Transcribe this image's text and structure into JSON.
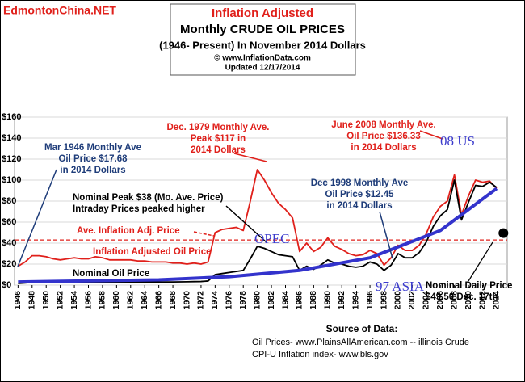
{
  "chart_data": {
    "type": "line",
    "watermark": "EdmontonChina.NET",
    "title": "Inflation Adjusted",
    "subtitle_lines": [
      "Monthly CRUDE OIL PRICES",
      "(1946- Present) In November 2014 Dollars",
      "© www.InflationData.com",
      "Updated 12/17/2014"
    ],
    "x": [
      1946,
      1947,
      1948,
      1949,
      1950,
      1951,
      1952,
      1953,
      1954,
      1955,
      1956,
      1957,
      1958,
      1959,
      1960,
      1961,
      1962,
      1963,
      1964,
      1965,
      1966,
      1967,
      1968,
      1969,
      1970,
      1971,
      1972,
      1973,
      1974,
      1975,
      1976,
      1977,
      1978,
      1979,
      1980,
      1981,
      1982,
      1983,
      1984,
      1985,
      1986,
      1987,
      1988,
      1989,
      1990,
      1991,
      1992,
      1993,
      1994,
      1995,
      1996,
      1997,
      1998,
      1999,
      2000,
      2001,
      2002,
      2003,
      2004,
      2005,
      2006,
      2007,
      2008,
      2009,
      2010,
      2011,
      2012,
      2013,
      2014
    ],
    "series": [
      {
        "name": "Inflation Adjusted Oil Price",
        "color": "#e0201b",
        "values": [
          18,
          22,
          28,
          28,
          27,
          25,
          24,
          25,
          26,
          25,
          25,
          27,
          26,
          24,
          24,
          24,
          24,
          23,
          23,
          22,
          22,
          22,
          21,
          21,
          20,
          21,
          20,
          22,
          50,
          53,
          54,
          55,
          52,
          80,
          110,
          100,
          88,
          78,
          72,
          64,
          32,
          40,
          32,
          36,
          45,
          37,
          34,
          30,
          28,
          29,
          33,
          30,
          19,
          26,
          38,
          33,
          33,
          38,
          49,
          65,
          75,
          80,
          105,
          67,
          85,
          100,
          98,
          99,
          92
        ]
      },
      {
        "name": "Nominal Oil Price",
        "color": "#000000",
        "values": [
          1.6,
          2,
          2.6,
          2.6,
          2.6,
          2.5,
          2.5,
          2.7,
          2.8,
          2.8,
          2.8,
          3,
          3,
          2.9,
          2.9,
          2.9,
          2.9,
          2.9,
          2.9,
          2.9,
          2.9,
          3,
          3,
          3.1,
          3.2,
          3.3,
          3.4,
          3.9,
          10,
          11,
          12,
          13,
          14,
          25,
          37,
          35,
          32,
          29,
          28,
          27,
          14,
          18,
          15,
          19,
          24,
          21,
          20,
          18,
          17,
          18,
          22,
          20,
          14,
          19,
          30,
          26,
          26,
          31,
          41,
          56,
          66,
          72,
          100,
          62,
          79,
          95,
          94,
          98,
          93
        ]
      }
    ],
    "trend": {
      "color": "#3333cc",
      "x": [
        1946,
        1956,
        1966,
        1976,
        1986,
        1996,
        2006,
        2014
      ],
      "values": [
        3,
        4,
        5,
        8,
        14,
        26,
        52,
        92
      ]
    },
    "average_line": {
      "value": 43,
      "label": "Ave. Inflation Adj. Price",
      "color": "#e0201b"
    },
    "daily_price": {
      "x": 2014.96,
      "value": 49.5,
      "label_lines": [
        "Nominal Daily Price",
        "$49.50 Dec. 17th"
      ]
    },
    "xlim": [
      1945.5,
      2015.5
    ],
    "xticks": [
      1946,
      1948,
      1950,
      1952,
      1954,
      1956,
      1958,
      1960,
      1962,
      1964,
      1966,
      1968,
      1970,
      1972,
      1974,
      1976,
      1978,
      1980,
      1982,
      1984,
      1986,
      1988,
      1990,
      1992,
      1994,
      1996,
      1998,
      2000,
      2002,
      2004,
      2006,
      2008,
      2010,
      2012,
      2014
    ],
    "ylim": [
      0,
      160
    ],
    "yticks": [
      {
        "value": 0,
        "label": "$0"
      },
      {
        "value": 20,
        "label": "$20"
      },
      {
        "value": 40,
        "label": "$40"
      },
      {
        "value": 60,
        "label": "$60"
      },
      {
        "value": 80,
        "label": "$80"
      },
      {
        "value": 100,
        "label": "$100"
      },
      {
        "value": 120,
        "label": "$120"
      },
      {
        "value": 140,
        "label": "$140"
      },
      {
        "value": 160,
        "label": "$160"
      }
    ],
    "grid": true,
    "annotations": [
      {
        "lines": [
          "Mar 1946 Monthly Ave",
          "Oil  Price $17.68",
          "in 2014 Dollars"
        ],
        "color": "#1f3d7a"
      },
      {
        "lines": [
          "Dec. 1979 Monthly Ave.",
          "Peak $117 in",
          "2014 Dollars"
        ],
        "color": "#e0201b"
      },
      {
        "lines": [
          "Nominal Peak $38 (Mo. Ave. Price)",
          "Intraday Prices peaked higher"
        ],
        "color": "#000000"
      },
      {
        "lines": [
          "June 2008 Monthly Ave.",
          "Oil  Price $136.33",
          "in 2014 Dollars"
        ],
        "color": "#e0201b"
      },
      {
        "lines": [
          "Dec 1998 Monthly Ave",
          "Oil  Price $12.45",
          "in 2014 Dollars"
        ],
        "color": "#1f3d7a"
      }
    ],
    "overlay_texts": [
      "OPEC",
      "08 US",
      "97 ASIA"
    ],
    "source_lines": [
      "Source of Data:",
      "Oil Prices- www.PlainsAllAmerican.com -- illinois Crude",
      "CPI-U Inflation index-   www.bls.gov"
    ]
  }
}
